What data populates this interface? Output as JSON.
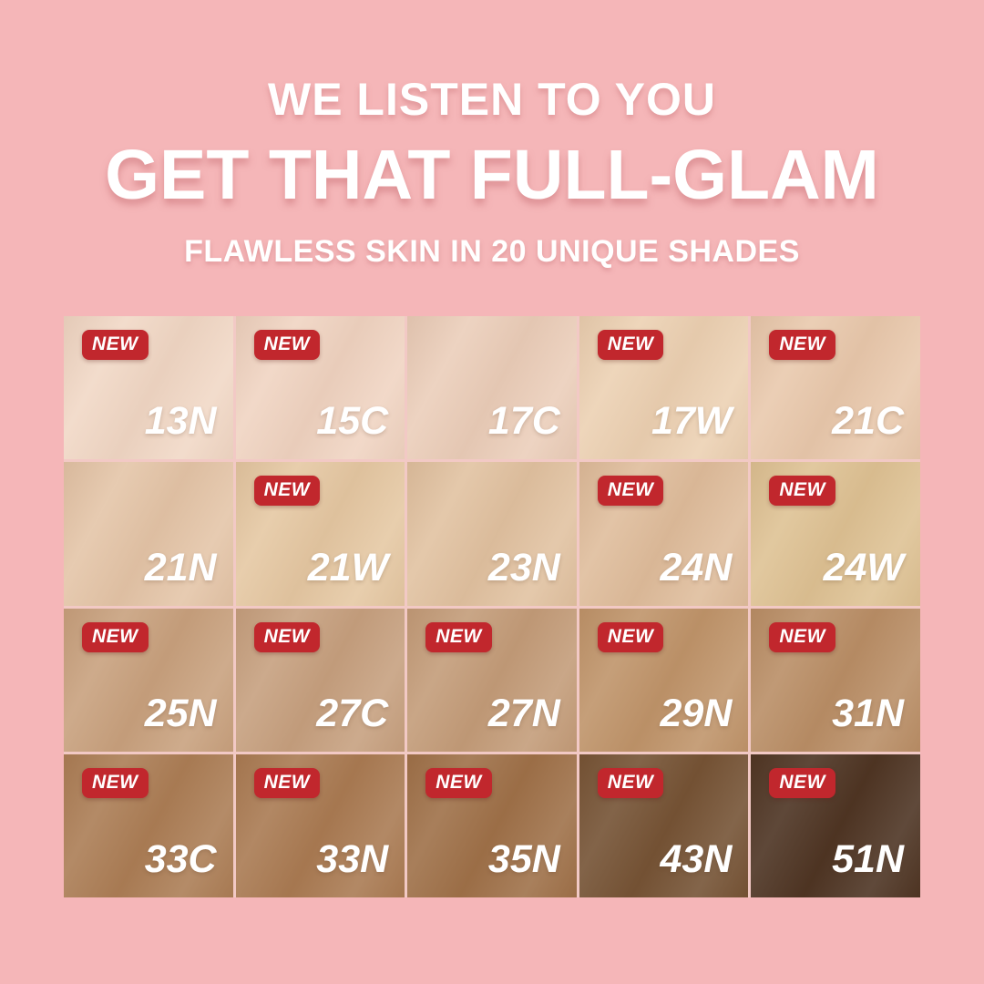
{
  "page_background": "#f5b6b8",
  "header": {
    "line1": "WE LISTEN TO YOU",
    "line2": "GET THAT FULL-GLAM",
    "line3": "FLAWLESS SKIN IN 20 UNIQUE SHADES",
    "text_color": "#ffffff"
  },
  "badge": {
    "label": "NEW",
    "bg": "#c1272d",
    "text_color": "#ffffff"
  },
  "grid": {
    "rows": 4,
    "cols": 5,
    "gap_color": "#f2c9c5",
    "shades": [
      {
        "code": "13N",
        "color": "#f1d8c6",
        "new": true
      },
      {
        "code": "15C",
        "color": "#f0d4c2",
        "new": true
      },
      {
        "code": "17C",
        "color": "#ebceba",
        "new": false
      },
      {
        "code": "17W",
        "color": "#ecd1b3",
        "new": true
      },
      {
        "code": "21C",
        "color": "#e9c9ad",
        "new": true
      },
      {
        "code": "21N",
        "color": "#e4c5a8",
        "new": false
      },
      {
        "code": "21W",
        "color": "#e5c8a3",
        "new": true
      },
      {
        "code": "23N",
        "color": "#e1c2a1",
        "new": false
      },
      {
        "code": "24N",
        "color": "#dfbd9c",
        "new": true
      },
      {
        "code": "24W",
        "color": "#dec294",
        "new": true
      },
      {
        "code": "25N",
        "color": "#c8a17e",
        "new": true
      },
      {
        "code": "27C",
        "color": "#c6a07f",
        "new": true
      },
      {
        "code": "27N",
        "color": "#c39c79",
        "new": true
      },
      {
        "code": "29N",
        "color": "#bf946a",
        "new": true
      },
      {
        "code": "31N",
        "color": "#b98e66",
        "new": true
      },
      {
        "code": "33C",
        "color": "#ab7d55",
        "new": true
      },
      {
        "code": "33N",
        "color": "#a97a52",
        "new": true
      },
      {
        "code": "35N",
        "color": "#9e7048",
        "new": true
      },
      {
        "code": "43N",
        "color": "#745234",
        "new": true
      },
      {
        "code": "51N",
        "color": "#4c3322",
        "new": true
      }
    ]
  }
}
